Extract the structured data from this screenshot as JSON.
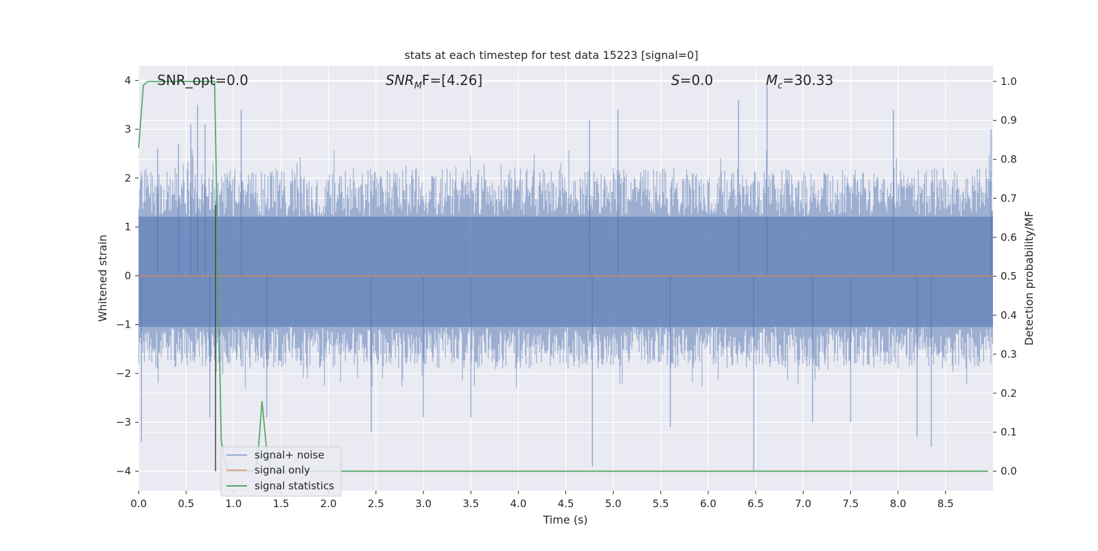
{
  "chart_data": {
    "type": "line",
    "title": "stats at each timestep for test data 15223 [signal=0]",
    "xlabel": "Time (s)",
    "ylabel": "Whitened strain",
    "y2label": "Detection probability/MF",
    "xlim": [
      0.0,
      9.0
    ],
    "ylim": [
      -4.4,
      4.3
    ],
    "y2lim": [
      -0.05,
      1.04
    ],
    "xticks": [
      "0.0",
      "0.5",
      "1.0",
      "1.5",
      "2.0",
      "2.5",
      "3.0",
      "3.5",
      "4.0",
      "4.5",
      "5.0",
      "5.5",
      "6.0",
      "6.5",
      "7.0",
      "7.5",
      "8.0",
      "8.5"
    ],
    "xtick_values": [
      0.0,
      0.5,
      1.0,
      1.5,
      2.0,
      2.5,
      3.0,
      3.5,
      4.0,
      4.5,
      5.0,
      5.5,
      6.0,
      6.5,
      7.0,
      7.5,
      8.0,
      8.5
    ],
    "yticks": [
      "−4",
      "−3",
      "−2",
      "−1",
      "0",
      "1",
      "2",
      "3",
      "4"
    ],
    "ytick_values": [
      -4,
      -3,
      -2,
      -1,
      0,
      1,
      2,
      3,
      4
    ],
    "y2ticks": [
      "0.0",
      "0.1",
      "0.2",
      "0.3",
      "0.4",
      "0.5",
      "0.6",
      "0.7",
      "0.8",
      "0.9",
      "1.0"
    ],
    "y2tick_values": [
      0.0,
      0.1,
      0.2,
      0.3,
      0.4,
      0.5,
      0.6,
      0.7,
      0.8,
      0.9,
      1.0
    ],
    "grid": true,
    "legend_placement": "lower-left",
    "annotations": {
      "snr_opt": "SNR_opt=0.0",
      "snr_mf_base": "SNR",
      "snr_mf_sub": "M",
      "snr_mf_rest": "F=[4.26]",
      "s_label": "S",
      "s_rest": "=0.0",
      "mc_base": "M",
      "mc_sub": "c",
      "mc_rest": "=30.33"
    },
    "vertical_marker_x": 0.81,
    "series": [
      {
        "name": "signal+ noise",
        "color": "#4c72b0",
        "axis": "left",
        "description": "dense whitened noise, approx uniform band between -2 and 2.3 with spikes",
        "noise_band": [
          -1.9,
          2.2
        ],
        "spikes": [
          [
            0.03,
            -3.4
          ],
          [
            0.2,
            2.6
          ],
          [
            0.42,
            2.7
          ],
          [
            0.55,
            3.1
          ],
          [
            0.62,
            3.5
          ],
          [
            0.7,
            3.1
          ],
          [
            0.75,
            -2.9
          ],
          [
            1.08,
            3.4
          ],
          [
            1.35,
            -2.9
          ],
          [
            2.45,
            -3.2
          ],
          [
            3.0,
            -2.9
          ],
          [
            3.5,
            -2.9
          ],
          [
            4.75,
            3.2
          ],
          [
            4.78,
            -3.9
          ],
          [
            5.05,
            3.4
          ],
          [
            5.6,
            -3.1
          ],
          [
            6.32,
            3.6
          ],
          [
            6.48,
            -4.0
          ],
          [
            6.62,
            3.9
          ],
          [
            7.1,
            -3.0
          ],
          [
            7.5,
            -3.0
          ],
          [
            7.95,
            3.4
          ],
          [
            8.2,
            -3.3
          ],
          [
            8.35,
            -3.5
          ],
          [
            8.98,
            3.0
          ]
        ]
      },
      {
        "name": "signal only",
        "color": "#dd8452",
        "axis": "left",
        "x": [
          0.0,
          9.0
        ],
        "y": [
          0.0,
          0.0
        ]
      },
      {
        "name": "signal statistics",
        "color": "#55a868",
        "axis": "right",
        "x": [
          0.0,
          0.05,
          0.1,
          0.15,
          0.2,
          0.3,
          0.4,
          0.5,
          0.6,
          0.7,
          0.8,
          0.83,
          0.87,
          0.9,
          0.95,
          1.0,
          1.1,
          1.2,
          1.25,
          1.3,
          1.35,
          1.4,
          1.5,
          2.0,
          3.0,
          4.0,
          5.0,
          6.0,
          7.0,
          8.0,
          8.95
        ],
        "y": [
          0.83,
          0.99,
          1.0,
          1.0,
          1.0,
          1.0,
          1.0,
          1.0,
          1.0,
          1.0,
          1.0,
          0.6,
          0.08,
          0.03,
          0.0,
          0.0,
          0.0,
          0.0,
          0.02,
          0.18,
          0.05,
          0.0,
          0.0,
          0.0,
          0.0,
          0.0,
          0.0,
          0.0,
          0.0,
          0.0,
          0.0
        ]
      }
    ]
  }
}
